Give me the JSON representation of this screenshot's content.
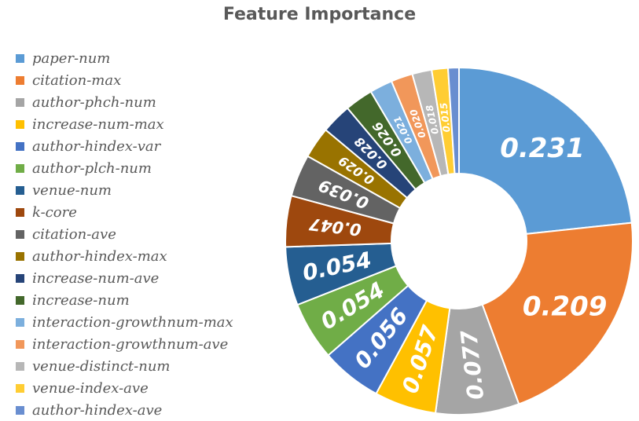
{
  "title": "Feature Importance",
  "chart_data": {
    "type": "pie",
    "title": "Feature Importance",
    "legend": "left",
    "categories": [
      "paper-num",
      "citation-max",
      "author-phch-num",
      "increase-num-max",
      "author-hindex-var",
      "author-plch-num",
      "venue-num",
      "k-core",
      "citation-ave",
      "author-hindex-max",
      "increase-num-ave",
      "increase-num",
      "interaction-growthnum-max",
      "interaction-growthnum-ave",
      "venue-distinct-num",
      "venue-index-ave",
      "author-hindex-ave"
    ],
    "values": [
      0.231,
      0.209,
      0.077,
      0.057,
      0.056,
      0.054,
      0.054,
      0.047,
      0.039,
      0.029,
      0.028,
      0.026,
      0.021,
      0.02,
      0.018,
      0.015,
      0.01
    ],
    "data_labels": [
      "0.231",
      "0.209",
      "0.077",
      "0.057",
      "0.056",
      "0.054",
      "0.054",
      "0.047",
      "0.039",
      "0.029",
      "0.028",
      "0.026",
      "0.021",
      "0.020",
      "0.018",
      "0.015",
      ""
    ],
    "colors": [
      "#5B9BD5",
      "#ED7D31",
      "#A5A5A5",
      "#FFC000",
      "#4472C4",
      "#70AD47",
      "#255E91",
      "#9E480E",
      "#636363",
      "#997300",
      "#264478",
      "#43682B",
      "#7CAFDD",
      "#F1975A",
      "#B7B7B7",
      "#FFCD33",
      "#698ED0"
    ]
  }
}
